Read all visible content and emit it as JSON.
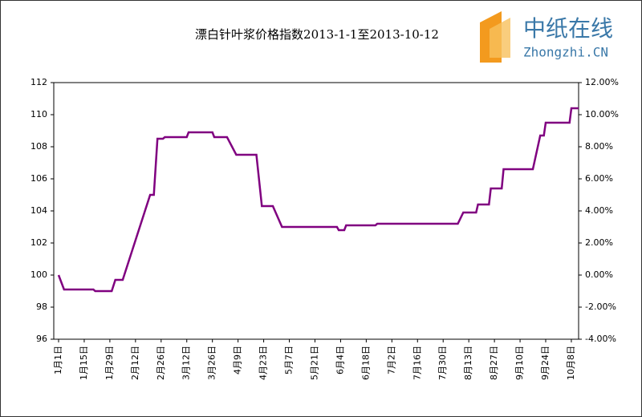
{
  "logo": {
    "name": "中纸在线",
    "site": "Zhongzhi.CN"
  },
  "chart_data": {
    "type": "line",
    "title": "漂白针叶浆价格指数2013-1-1至2013-10-12",
    "x": [
      "1月1日",
      "1月4日",
      "1月20日",
      "1月21日",
      "1月30日",
      "2月1日",
      "2月5日",
      "2月20日",
      "2月22日",
      "2月24日",
      "2月27日",
      "2月28日",
      "3月12日",
      "3月13日",
      "3月26日",
      "3月27日",
      "4月3日",
      "4月8日",
      "4月19日",
      "4月22日",
      "4月28日",
      "5月3日",
      "6月2日",
      "6月3日",
      "6月6日",
      "6月7日",
      "6月23日",
      "6月24日",
      "8月7日",
      "8月10日",
      "8月17日",
      "8月18日",
      "8月24日",
      "8月25日",
      "8月31日",
      "9月1日",
      "9月17日",
      "9月21日",
      "9月23日",
      "9月24日",
      "10月7日",
      "10月8日",
      "10月12日"
    ],
    "series": [
      {
        "name": "漂白针叶浆价格指数",
        "color": "#800080",
        "values": [
          100,
          99.1,
          99.1,
          99.0,
          99.0,
          99.7,
          99.7,
          105.0,
          105.0,
          108.5,
          108.5,
          108.6,
          108.6,
          108.9,
          108.9,
          108.6,
          108.6,
          107.5,
          107.5,
          104.3,
          104.3,
          103.0,
          103.0,
          102.8,
          102.8,
          103.1,
          103.1,
          103.2,
          103.2,
          103.9,
          103.9,
          104.4,
          104.4,
          105.4,
          105.4,
          106.6,
          106.6,
          108.7,
          108.7,
          109.5,
          109.5,
          110.4,
          110.4
        ]
      }
    ],
    "xticks": [
      "1月1日",
      "1月15日",
      "1月29日",
      "2月12日",
      "2月26日",
      "3月12日",
      "3月26日",
      "4月9日",
      "4月23日",
      "5月7日",
      "5月21日",
      "6月4日",
      "6月18日",
      "7月2日",
      "7月16日",
      "7月30日",
      "8月13日",
      "8月27日",
      "9月10日",
      "9月24日",
      "10月8日"
    ],
    "ylim": [
      96,
      112
    ],
    "yticks": [
      96,
      98,
      100,
      102,
      104,
      106,
      108,
      110,
      112
    ],
    "y2lim": [
      -4,
      12
    ],
    "y2ticks": [
      {
        "value": -4,
        "label": "-4.00%"
      },
      {
        "value": -2,
        "label": "-2.00%"
      },
      {
        "value": 0,
        "label": "0.00%"
      },
      {
        "value": 2,
        "label": "2.00%"
      },
      {
        "value": 4,
        "label": "4.00%"
      },
      {
        "value": 6,
        "label": "6.00%"
      },
      {
        "value": 8,
        "label": "8.00%"
      },
      {
        "value": 10,
        "label": "10.00%"
      },
      {
        "value": 12,
        "label": "12.00%"
      }
    ],
    "grid": false
  }
}
